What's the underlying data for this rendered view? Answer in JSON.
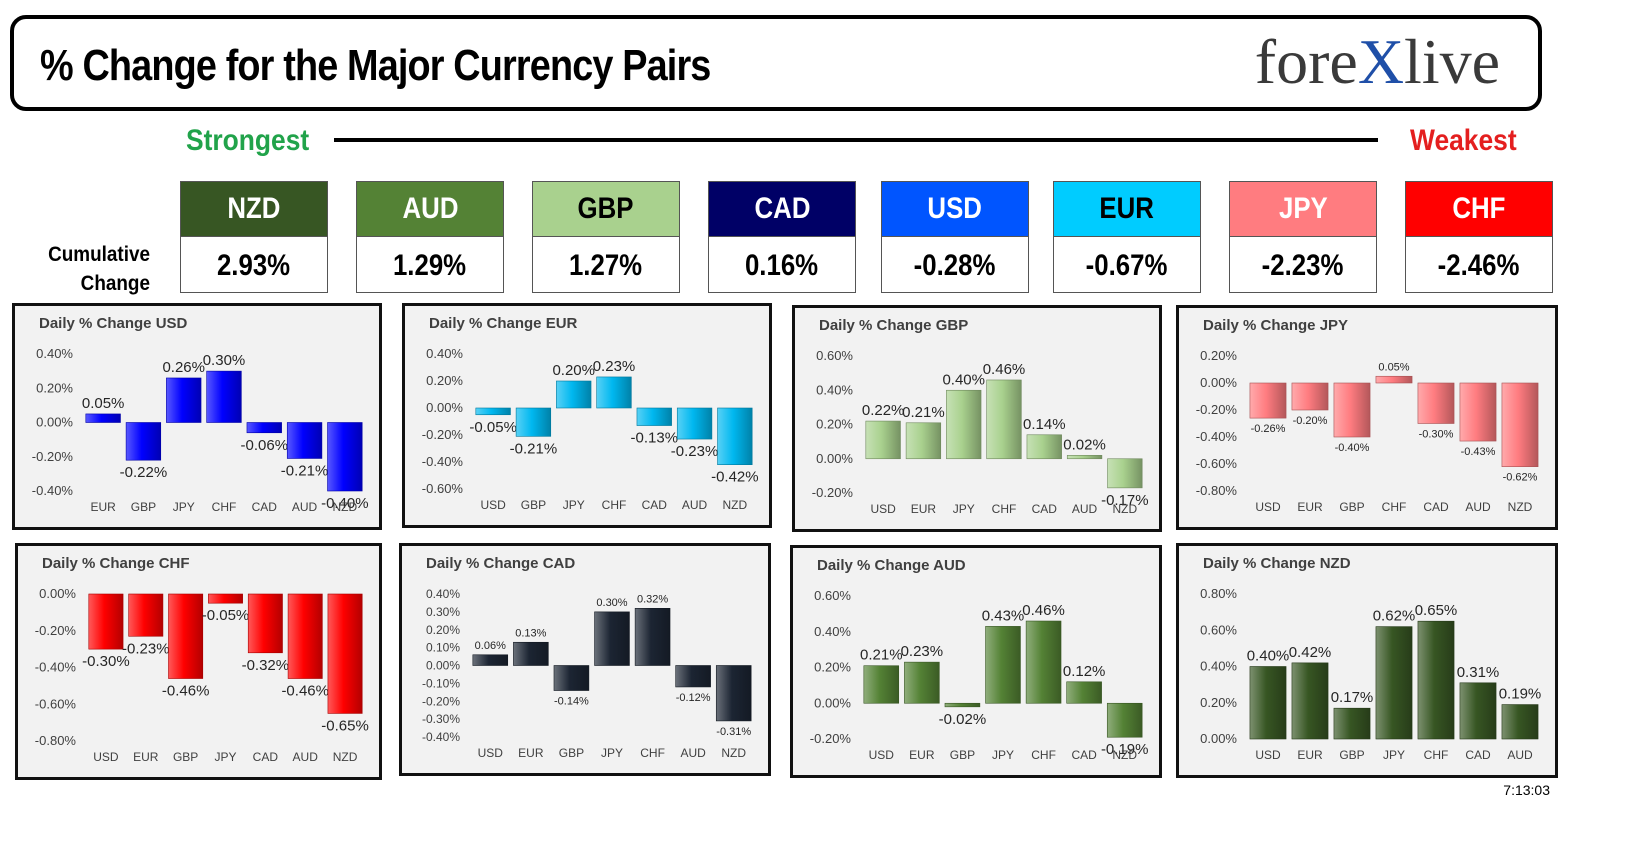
{
  "header": {
    "title": "% Change for the Major Currency Pairs",
    "logo_left": "fore",
    "logo_x": "X",
    "logo_right": "live"
  },
  "ranking": {
    "strongest_label": "Strongest",
    "weakest_label": "Weakest",
    "cumulative_label_line1": "Cumulative",
    "cumulative_label_line2": "Change",
    "currencies": [
      {
        "name": "NZD",
        "value": "2.93%",
        "bg": "#375623",
        "fg": "#ffffff"
      },
      {
        "name": "AUD",
        "value": "1.29%",
        "bg": "#548235",
        "fg": "#ffffff"
      },
      {
        "name": "GBP",
        "value": "1.27%",
        "bg": "#a9d18e",
        "fg": "#000000"
      },
      {
        "name": "CAD",
        "value": "0.16%",
        "bg": "#000066",
        "fg": "#ffffff"
      },
      {
        "name": "USD",
        "value": "-0.28%",
        "bg": "#0055ff",
        "fg": "#ffffff"
      },
      {
        "name": "EUR",
        "value": "-0.67%",
        "bg": "#00ccff",
        "fg": "#000000"
      },
      {
        "name": "JPY",
        "value": "-2.23%",
        "bg": "#ff7c80",
        "fg": "#ffffff"
      },
      {
        "name": "CHF",
        "value": "-2.46%",
        "bg": "#ff0000",
        "fg": "#ffffff"
      }
    ]
  },
  "timestamp": "7:13:03",
  "chart_data": [
    {
      "type": "bar",
      "title": "Daily % Change USD",
      "categories": [
        "EUR",
        "GBP",
        "JPY",
        "CHF",
        "CAD",
        "AUD",
        "NZD"
      ],
      "values": [
        0.05,
        -0.22,
        0.26,
        0.3,
        -0.06,
        -0.21,
        -0.4
      ],
      "labels": [
        "0.05%",
        "-0.22%",
        "0.26%",
        "0.30%",
        "-0.06%",
        "-0.21%",
        "-0.40%"
      ],
      "yticks": [
        "0.40%",
        "0.20%",
        "0.00%",
        "-0.20%",
        "-0.40%"
      ],
      "ylim": [
        -0.4,
        0.4
      ],
      "color": "#0000ff"
    },
    {
      "type": "bar",
      "title": "Daily % Change EUR",
      "categories": [
        "USD",
        "GBP",
        "JPY",
        "CHF",
        "CAD",
        "AUD",
        "NZD"
      ],
      "values": [
        -0.05,
        -0.21,
        0.2,
        0.23,
        -0.13,
        -0.23,
        -0.42
      ],
      "labels": [
        "-0.05%",
        "-0.21%",
        "0.20%",
        "0.23%",
        "-0.13%",
        "-0.23%",
        "-0.42%"
      ],
      "yticks": [
        "0.40%",
        "0.20%",
        "0.00%",
        "-0.20%",
        "-0.40%",
        "-0.60%"
      ],
      "ylim": [
        -0.6,
        0.4
      ],
      "color": "#00b8f0"
    },
    {
      "type": "bar",
      "title": "Daily % Change GBP",
      "categories": [
        "USD",
        "EUR",
        "JPY",
        "CHF",
        "CAD",
        "AUD",
        "NZD"
      ],
      "values": [
        0.22,
        0.21,
        0.4,
        0.46,
        0.14,
        0.02,
        -0.17
      ],
      "labels": [
        "0.22%",
        "0.21%",
        "0.40%",
        "0.46%",
        "0.14%",
        "0.02%",
        "-0.17%"
      ],
      "yticks": [
        "0.60%",
        "0.40%",
        "0.20%",
        "0.00%",
        "-0.20%"
      ],
      "ylim": [
        -0.2,
        0.6
      ],
      "color": "#a9d18e"
    },
    {
      "type": "bar",
      "title": "Daily % Change JPY",
      "categories": [
        "USD",
        "EUR",
        "GBP",
        "CHF",
        "CAD",
        "AUD",
        "NZD"
      ],
      "values": [
        -0.26,
        -0.2,
        -0.4,
        0.05,
        -0.3,
        -0.43,
        -0.62
      ],
      "labels": [
        "-0.26%",
        "-0.20%",
        "-0.40%",
        "0.05%",
        "-0.30%",
        "-0.43%",
        "-0.62%"
      ],
      "yticks": [
        "0.20%",
        "0.00%",
        "-0.20%",
        "-0.40%",
        "-0.60%",
        "-0.80%"
      ],
      "ylim": [
        -0.8,
        0.2
      ],
      "color": "#ff7c80"
    },
    {
      "type": "bar",
      "title": "Daily % Change CHF",
      "categories": [
        "USD",
        "EUR",
        "GBP",
        "JPY",
        "CAD",
        "AUD",
        "NZD"
      ],
      "values": [
        -0.3,
        -0.23,
        -0.46,
        -0.05,
        -0.32,
        -0.46,
        -0.65
      ],
      "labels": [
        "-0.30%",
        "-0.23%",
        "-0.46%",
        "-0.05%",
        "-0.32%",
        "-0.46%",
        "-0.65%"
      ],
      "yticks": [
        "0.00%",
        "-0.20%",
        "-0.40%",
        "-0.60%",
        "-0.80%"
      ],
      "ylim": [
        -0.8,
        0.0
      ],
      "color": "#ff0000"
    },
    {
      "type": "bar",
      "title": "Daily % Change CAD",
      "categories": [
        "USD",
        "EUR",
        "GBP",
        "JPY",
        "CHF",
        "AUD",
        "NZD"
      ],
      "values": [
        0.06,
        0.13,
        -0.14,
        0.3,
        0.32,
        -0.12,
        -0.31
      ],
      "labels": [
        "0.06%",
        "0.13%",
        "-0.14%",
        "0.30%",
        "0.32%",
        "-0.12%",
        "-0.31%"
      ],
      "yticks": [
        "0.40%",
        "0.30%",
        "0.20%",
        "0.10%",
        "0.00%",
        "-0.10%",
        "-0.20%",
        "-0.30%",
        "-0.40%"
      ],
      "ylim": [
        -0.4,
        0.4
      ],
      "color": "#1c2533"
    },
    {
      "type": "bar",
      "title": "Daily % Change AUD",
      "categories": [
        "USD",
        "EUR",
        "GBP",
        "JPY",
        "CHF",
        "CAD",
        "NZD"
      ],
      "values": [
        0.21,
        0.23,
        -0.02,
        0.43,
        0.46,
        0.12,
        -0.19
      ],
      "labels": [
        "0.21%",
        "0.23%",
        "-0.02%",
        "0.43%",
        "0.46%",
        "0.12%",
        "-0.19%"
      ],
      "yticks": [
        "0.60%",
        "0.40%",
        "0.20%",
        "0.00%",
        "-0.20%"
      ],
      "ylim": [
        -0.2,
        0.6
      ],
      "color": "#548235"
    },
    {
      "type": "bar",
      "title": "Daily % Change NZD",
      "categories": [
        "USD",
        "EUR",
        "GBP",
        "JPY",
        "CHF",
        "CAD",
        "AUD"
      ],
      "values": [
        0.4,
        0.42,
        0.17,
        0.62,
        0.65,
        0.31,
        0.19
      ],
      "labels": [
        "0.40%",
        "0.42%",
        "0.17%",
        "0.62%",
        "0.65%",
        "0.31%",
        "0.19%"
      ],
      "yticks": [
        "0.80%",
        "0.60%",
        "0.40%",
        "0.20%",
        "0.00%"
      ],
      "ylim": [
        0.0,
        0.8
      ],
      "color": "#375623"
    }
  ]
}
